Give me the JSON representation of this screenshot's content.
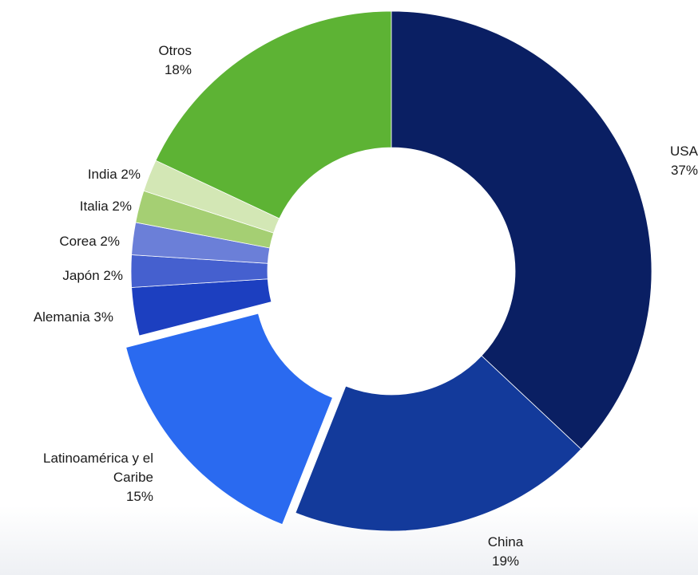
{
  "chart_data": {
    "type": "donut",
    "categories": [
      "USA",
      "China",
      "Latinoamérica y el Caribe",
      "Alemania",
      "Japón",
      "Corea",
      "Italia",
      "India",
      "Otros"
    ],
    "values": [
      37,
      19,
      15,
      3,
      2,
      2,
      2,
      2,
      18
    ],
    "value_labels": [
      "37%",
      "19%",
      "15%",
      "3%",
      "2%",
      "2%",
      "2%",
      "2%",
      "18%"
    ],
    "colors": [
      "#0a1f63",
      "#133a9b",
      "#2a6af0",
      "#1c3fc0",
      "#4560cf",
      "#6b7fd8",
      "#a5cf73",
      "#d3e7b5",
      "#5db334"
    ],
    "exploded": [
      false,
      false,
      true,
      false,
      false,
      false,
      false,
      false,
      false
    ]
  }
}
